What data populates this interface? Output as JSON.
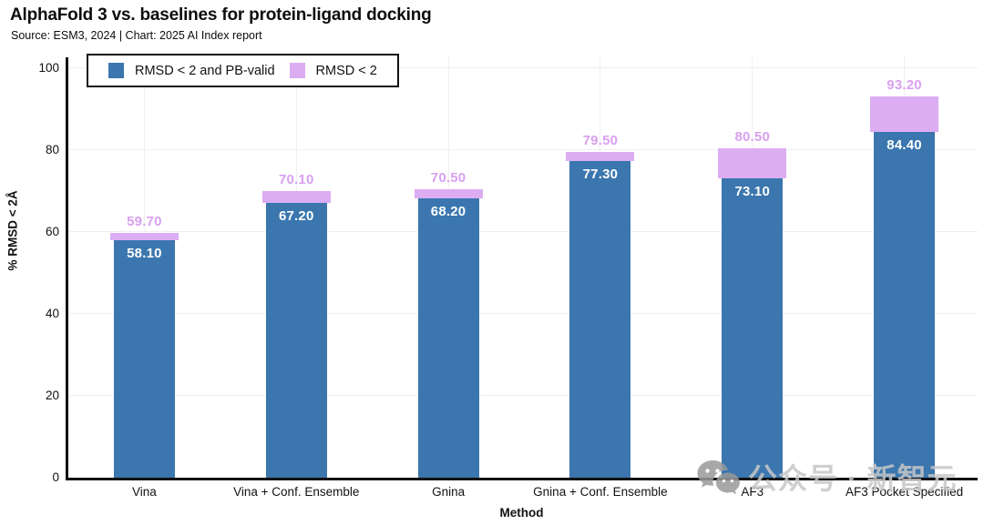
{
  "header": {
    "title": "AlphaFold 3 vs. baselines for protein-ligand docking",
    "subtitle": "Source: ESM3, 2024 | Chart: 2025 AI Index report"
  },
  "legend": {
    "position": "top-left",
    "items": [
      {
        "label": "RMSD < 2 and PB-valid",
        "color": "#3b76ae"
      },
      {
        "label": "RMSD < 2",
        "color": "#dcadf2"
      }
    ]
  },
  "chart_data": {
    "type": "bar",
    "title": "AlphaFold 3 vs. baselines for protein-ligand docking",
    "categories": [
      "Vina",
      "Vina + Conf. Ensemble",
      "Gnina",
      "Gnina + Conf. Ensemble",
      "AF3",
      "AF3 Pocket Specified"
    ],
    "series": [
      {
        "name": "RMSD < 2 and PB-valid",
        "color": "#3b76ae",
        "values": [
          58.1,
          67.2,
          68.2,
          77.3,
          73.1,
          84.4
        ],
        "labels": [
          "58.10",
          "67.20",
          "68.20",
          "77.30",
          "73.10",
          "84.40"
        ],
        "label_color": "#ffffff",
        "label_position": "inside-top"
      },
      {
        "name": "RMSD < 2",
        "color": "#dcadf2",
        "values": [
          59.7,
          70.1,
          70.5,
          79.5,
          80.5,
          93.2
        ],
        "labels": [
          "59.70",
          "70.10",
          "70.50",
          "79.50",
          "80.50",
          "93.20"
        ],
        "label_color": "#d9a0ef",
        "label_position": "above",
        "note": "values are totals; drawn as cap segment from first series top to total"
      }
    ],
    "xlabel": "Method",
    "ylabel": "% RMSD < 2Å",
    "ylim": [
      0,
      100
    ],
    "yticks": [
      0,
      20,
      40,
      60,
      80,
      100
    ],
    "grid": true,
    "legend_position": "top-left"
  },
  "watermark": {
    "icon": "wechat-icon",
    "text": "公众号 · 新智元"
  }
}
